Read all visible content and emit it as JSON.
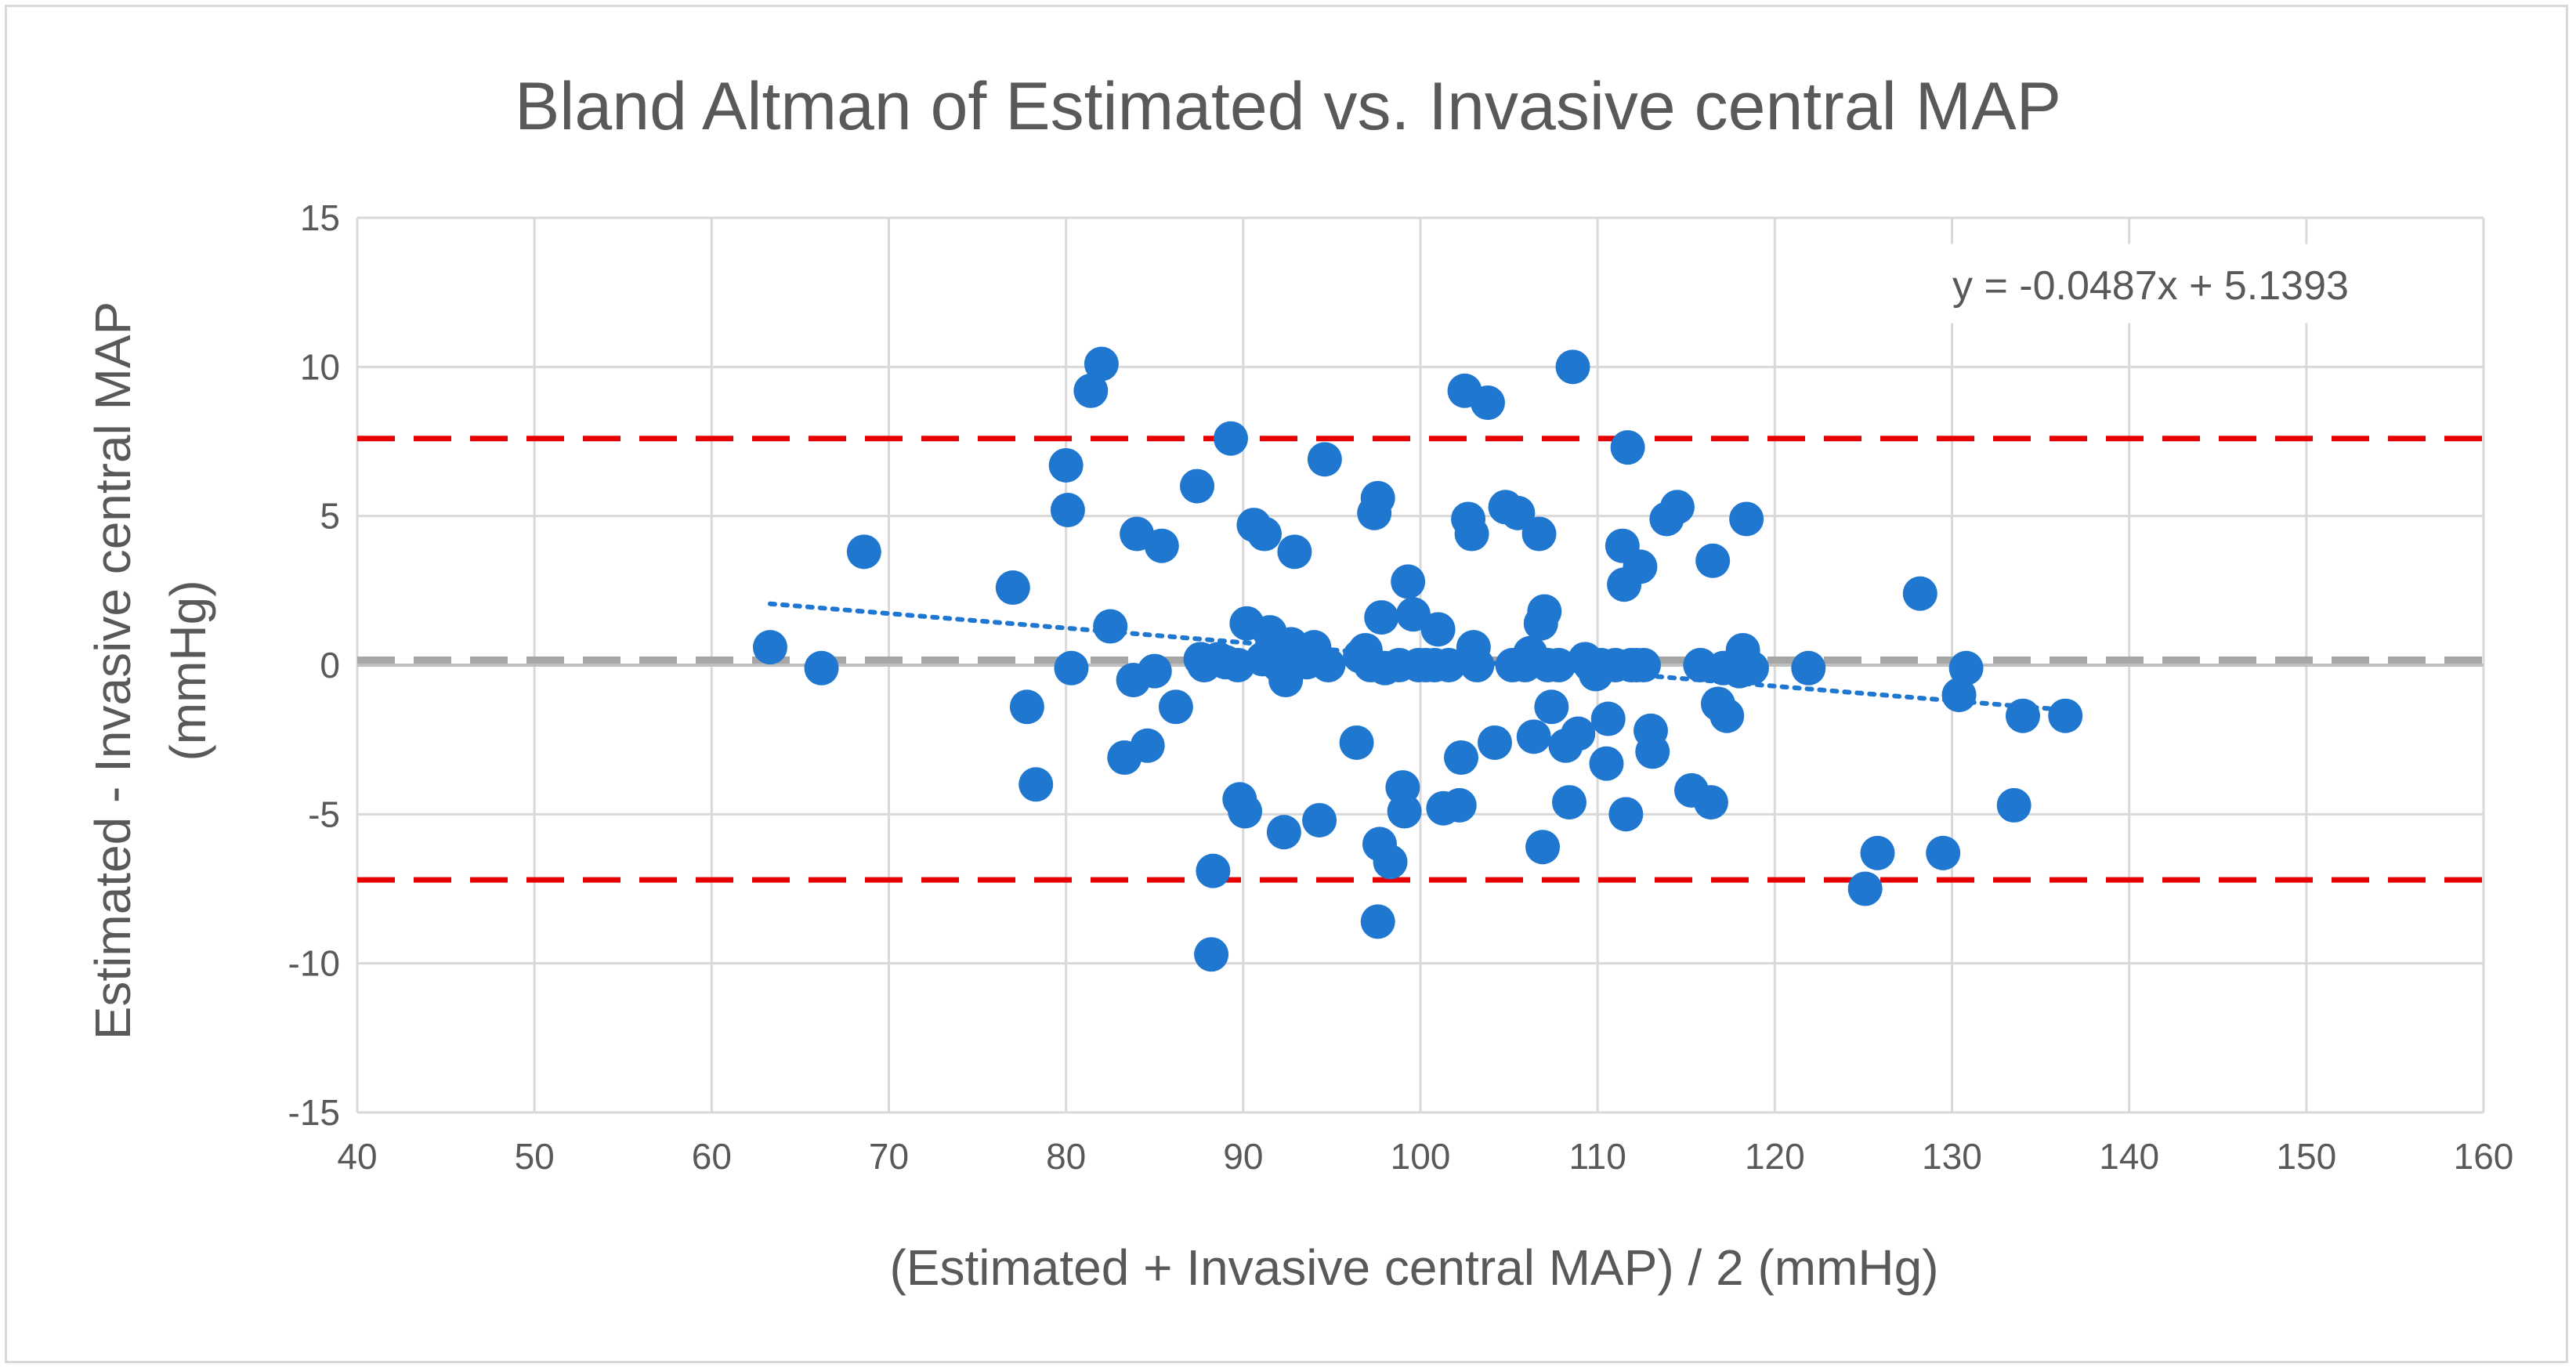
{
  "chart_data": {
    "type": "scatter",
    "title": "Bland Altman of Estimated vs. Invasive central MAP",
    "xlabel": "(Estimated + Invasive central MAP) / 2 (mmHg)",
    "ylabel_line1": "Estimated - Invasive central MAP",
    "ylabel_line2": "(mmHg)",
    "xlim": [
      40,
      160
    ],
    "ylim": [
      -15,
      15
    ],
    "x_ticks": [
      40,
      50,
      60,
      70,
      80,
      90,
      100,
      110,
      120,
      130,
      140,
      150,
      160
    ],
    "y_ticks": [
      -15,
      -10,
      -5,
      0,
      5,
      10,
      15
    ],
    "grid": true,
    "trendline": {
      "slope": -0.0487,
      "intercept": 5.1393,
      "x_range": [
        63.3,
        136.4
      ],
      "equation": "y = -0.0487x + 5.1393"
    },
    "mean_line": 0.17,
    "upper_loa": 7.6,
    "lower_loa": -7.2,
    "colors": {
      "points": "#1f77d0",
      "loa": "#e60000",
      "mean": "#a6a6a6",
      "trend": "#1f77d0",
      "grid": "#d9d9d9"
    },
    "points": [
      [
        63.3,
        0.6
      ],
      [
        66.2,
        -0.1
      ],
      [
        68.6,
        3.8
      ],
      [
        77.0,
        2.6
      ],
      [
        77.8,
        -1.4
      ],
      [
        78.3,
        -4.0
      ],
      [
        80.0,
        6.7
      ],
      [
        80.1,
        5.2
      ],
      [
        80.3,
        -0.1
      ],
      [
        81.4,
        9.2
      ],
      [
        82.0,
        10.1
      ],
      [
        82.5,
        1.3
      ],
      [
        83.3,
        -3.1
      ],
      [
        83.8,
        -0.5
      ],
      [
        84.0,
        4.4
      ],
      [
        84.6,
        -2.7
      ],
      [
        85.0,
        -0.2
      ],
      [
        85.4,
        4.0
      ],
      [
        86.2,
        -1.4
      ],
      [
        87.4,
        6.0
      ],
      [
        87.6,
        0.2
      ],
      [
        87.8,
        0.0
      ],
      [
        88.2,
        -9.7
      ],
      [
        88.3,
        -6.9
      ],
      [
        88.6,
        0.2
      ],
      [
        89.0,
        0.1
      ],
      [
        89.3,
        7.6
      ],
      [
        89.7,
        0.0
      ],
      [
        89.8,
        -4.5
      ],
      [
        90.1,
        -4.9
      ],
      [
        90.2,
        1.4
      ],
      [
        90.6,
        4.7
      ],
      [
        91.2,
        4.4
      ],
      [
        91.1,
        0.2
      ],
      [
        91.5,
        1.1
      ],
      [
        92.0,
        0.0
      ],
      [
        92.3,
        -5.6
      ],
      [
        92.4,
        -0.5
      ],
      [
        92.7,
        0.7
      ],
      [
        92.9,
        3.8
      ],
      [
        93.2,
        0.2
      ],
      [
        93.6,
        0.1
      ],
      [
        94.0,
        0.6
      ],
      [
        94.3,
        -5.2
      ],
      [
        94.6,
        6.9
      ],
      [
        94.8,
        0.0
      ],
      [
        96.4,
        -2.6
      ],
      [
        96.6,
        0.3
      ],
      [
        96.9,
        0.5
      ],
      [
        97.2,
        0.0
      ],
      [
        97.4,
        5.1
      ],
      [
        97.6,
        5.6
      ],
      [
        97.7,
        -6.0
      ],
      [
        97.8,
        1.6
      ],
      [
        97.6,
        -8.6
      ],
      [
        98.0,
        -0.1
      ],
      [
        98.3,
        -6.6
      ],
      [
        98.8,
        0.0
      ],
      [
        99.0,
        -4.1
      ],
      [
        99.1,
        -4.9
      ],
      [
        99.3,
        2.8
      ],
      [
        99.6,
        1.7
      ],
      [
        99.9,
        0.0
      ],
      [
        100.3,
        0.0
      ],
      [
        100.8,
        0.0
      ],
      [
        101.0,
        1.2
      ],
      [
        101.3,
        -4.8
      ],
      [
        101.6,
        0.0
      ],
      [
        102.2,
        -4.7
      ],
      [
        102.3,
        -3.1
      ],
      [
        102.5,
        9.2
      ],
      [
        102.7,
        4.9
      ],
      [
        102.9,
        4.4
      ],
      [
        103.0,
        0.6
      ],
      [
        103.2,
        0.0
      ],
      [
        103.8,
        8.8
      ],
      [
        104.2,
        -2.6
      ],
      [
        104.8,
        5.3
      ],
      [
        105.2,
        0.0
      ],
      [
        105.5,
        5.1
      ],
      [
        105.9,
        0.0
      ],
      [
        106.2,
        0.4
      ],
      [
        106.4,
        -2.4
      ],
      [
        106.7,
        4.4
      ],
      [
        106.8,
        1.4
      ],
      [
        106.9,
        -6.1
      ],
      [
        107.0,
        1.8
      ],
      [
        107.2,
        0.0
      ],
      [
        107.4,
        -1.4
      ],
      [
        107.8,
        0.0
      ],
      [
        108.2,
        -2.7
      ],
      [
        108.4,
        -4.6
      ],
      [
        108.6,
        10.0
      ],
      [
        108.9,
        -2.3
      ],
      [
        109.3,
        0.2
      ],
      [
        109.6,
        0.0
      ],
      [
        109.9,
        -0.3
      ],
      [
        110.2,
        0.0
      ],
      [
        110.5,
        -3.3
      ],
      [
        110.6,
        -1.8
      ],
      [
        111.0,
        0.0
      ],
      [
        111.4,
        4.0
      ],
      [
        111.5,
        2.7
      ],
      [
        111.6,
        -5.0
      ],
      [
        111.7,
        7.3
      ],
      [
        111.9,
        0.0
      ],
      [
        112.2,
        0.0
      ],
      [
        112.4,
        3.3
      ],
      [
        112.6,
        0.0
      ],
      [
        113.0,
        -2.2
      ],
      [
        113.1,
        -2.9
      ],
      [
        113.9,
        4.9
      ],
      [
        114.5,
        5.3
      ],
      [
        115.3,
        -4.2
      ],
      [
        115.8,
        0.0
      ],
      [
        116.4,
        -4.6
      ],
      [
        116.5,
        3.5
      ],
      [
        116.8,
        -1.3
      ],
      [
        117.1,
        -0.1
      ],
      [
        117.3,
        -1.7
      ],
      [
        118.0,
        -0.2
      ],
      [
        118.2,
        0.5
      ],
      [
        118.4,
        4.9
      ],
      [
        118.7,
        -0.1
      ],
      [
        121.9,
        -0.1
      ],
      [
        125.1,
        -7.5
      ],
      [
        125.8,
        -6.3
      ],
      [
        128.2,
        2.4
      ],
      [
        129.5,
        -6.3
      ],
      [
        130.4,
        -1.0
      ],
      [
        130.8,
        -0.1
      ],
      [
        133.5,
        -4.7
      ],
      [
        134.0,
        -1.7
      ],
      [
        136.4,
        -1.7
      ]
    ]
  }
}
